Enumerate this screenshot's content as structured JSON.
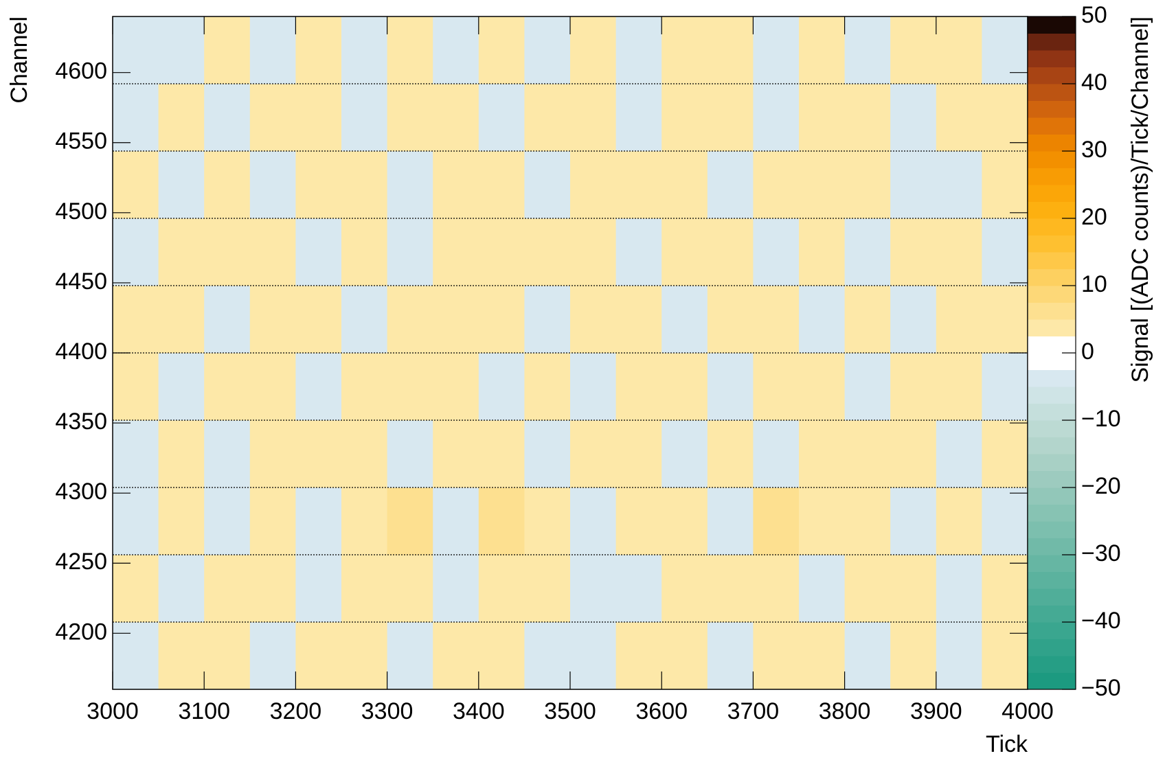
{
  "chart_data": {
    "type": "heatmap",
    "x_label": "Tick",
    "y_label": "Channel",
    "z_label": "Signal [(ADC counts)/Tick/Channel]",
    "xlim": [
      3000,
      4000
    ],
    "ylim": [
      4160,
      4640
    ],
    "zlim": [
      -50,
      50
    ],
    "xticks": [
      3000,
      3100,
      3200,
      3300,
      3400,
      3500,
      3600,
      3700,
      3800,
      3900,
      4000
    ],
    "yticks": [
      4200,
      4250,
      4300,
      4350,
      4400,
      4450,
      4500,
      4550,
      4600
    ],
    "zticks": [
      {
        "value": -50,
        "label": "−50"
      },
      {
        "value": -40,
        "label": "−40"
      },
      {
        "value": -30,
        "label": "−30"
      },
      {
        "value": -20,
        "label": "−20"
      },
      {
        "value": -10,
        "label": "−10"
      },
      0,
      10,
      20,
      30,
      40,
      50
    ],
    "hlines": [
      4208,
      4256,
      4304,
      4352,
      4400,
      4448,
      4496,
      4544,
      4592
    ],
    "xbins": [
      3000,
      3050,
      3100,
      3150,
      3200,
      3250,
      3300,
      3350,
      3400,
      3450,
      3500,
      3550,
      3600,
      3650,
      3700,
      3750,
      3800,
      3850,
      3900,
      3950,
      4000
    ],
    "ybins": [
      4160,
      4208,
      4256,
      4304,
      4352,
      4400,
      4448,
      4496,
      4544,
      4592,
      4640
    ],
    "z": [
      [
        -3,
        3,
        4,
        -3,
        3,
        4,
        -3,
        3,
        4,
        -3,
        -4,
        3,
        4,
        -3,
        3,
        4,
        -3,
        3,
        -3,
        3
      ],
      [
        3,
        -3,
        4,
        3,
        -3,
        3,
        4,
        -3,
        3,
        4,
        -4,
        -3,
        4,
        3,
        4,
        -3,
        3,
        4,
        -3,
        3
      ],
      [
        -4,
        3,
        -3,
        4,
        -3,
        4,
        5,
        -4,
        5,
        3,
        -3,
        4,
        3,
        -4,
        5,
        3,
        4,
        -3,
        3,
        -3
      ],
      [
        -3,
        4,
        -3,
        3,
        4,
        3,
        -3,
        4,
        3,
        -3,
        3,
        4,
        -3,
        4,
        -3,
        3,
        3,
        4,
        -3,
        3
      ],
      [
        3,
        -3,
        4,
        3,
        -3,
        4,
        3,
        4,
        -3,
        3,
        -4,
        4,
        3,
        -3,
        4,
        3,
        -3,
        3,
        4,
        -3
      ],
      [
        4,
        3,
        -3,
        4,
        3,
        -3,
        4,
        3,
        4,
        -3,
        3,
        4,
        -3,
        3,
        4,
        -3,
        3,
        -3,
        4,
        3
      ],
      [
        -3,
        4,
        3,
        4,
        -3,
        3,
        -4,
        4,
        3,
        4,
        3,
        -3,
        4,
        3,
        -3,
        4,
        -3,
        3,
        4,
        -3
      ],
      [
        3,
        -3,
        4,
        -3,
        3,
        4,
        -3,
        3,
        4,
        -3,
        3,
        4,
        3,
        -3,
        4,
        3,
        4,
        -3,
        -3,
        3
      ],
      [
        -3,
        3,
        -4,
        3,
        4,
        -3,
        3,
        4,
        -3,
        3,
        4,
        -3,
        3,
        4,
        -3,
        3,
        4,
        -4,
        3,
        4
      ],
      [
        -3,
        -3,
        3,
        -3,
        4,
        -3,
        3,
        -3,
        4,
        -3,
        3,
        -4,
        3,
        4,
        -3,
        3,
        -3,
        4,
        3,
        -3
      ]
    ],
    "palette": [
      "#1c9a80",
      "#269e85",
      "#30a28a",
      "#3aa68f",
      "#45aa94",
      "#50ae99",
      "#5bb29e",
      "#66b6a3",
      "#71baa8",
      "#7cbfae",
      "#87c3b3",
      "#92c7b9",
      "#9dcbbf",
      "#a8d0c5",
      "#b3d5cc",
      "#bcdad3",
      "#c5dfdc",
      "#cfe4e6",
      "#d8e8f0",
      "#ffffff",
      "#ffffff",
      "#fde8a8",
      "#fde090",
      "#fdd878",
      "#fdd060",
      "#fec848",
      "#fec030",
      "#feb820",
      "#fdb010",
      "#fba608",
      "#f89c04",
      "#f39000",
      "#ec8400",
      "#e07408",
      "#d0640e",
      "#bc5412",
      "#a84414",
      "#903414",
      "#6a2410",
      "#1a0804"
    ]
  }
}
